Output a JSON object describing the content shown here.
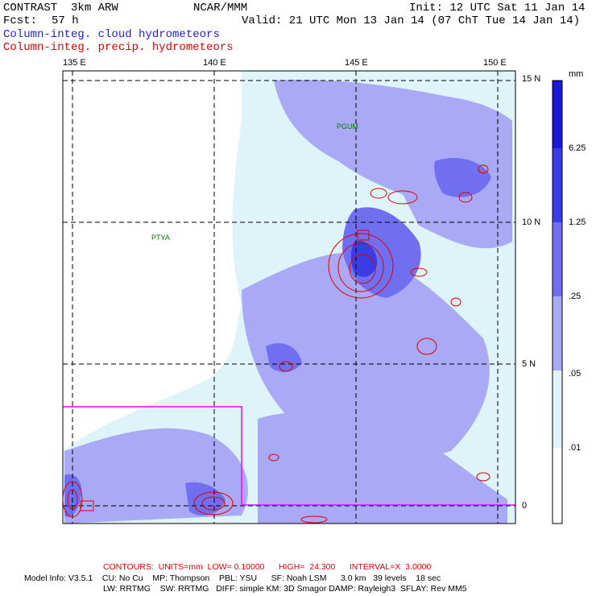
{
  "header": {
    "model": "CONTRAST  3km ARW",
    "org": "NCAR/MMM",
    "init": "Init: 12 UTC Sat 11 Jan 14",
    "fcst_label": "Fcst:",
    "fcst_value": "57 h",
    "valid": "Valid: 21 UTC Mon 13 Jan 14 (07 ChT Tue 14 Jan 14)",
    "field1": "Column-integ. cloud hydrometeors",
    "field2": "Column-integ. precip. hydrometeors"
  },
  "axes": {
    "lon_labels": [
      "135 E",
      "140 E",
      "145 E",
      "150 E"
    ],
    "lat_labels": [
      "15 N",
      "10 N",
      "5 N",
      "0"
    ]
  },
  "stations": [
    "PGUM",
    "PTYA"
  ],
  "legend": {
    "unit": "mm",
    "levels": [
      "6.25",
      "1.25",
      ".25",
      ".05",
      ".01"
    ],
    "colors": [
      "#1a1ad6",
      "#3c3ce6",
      "#6f6ff0",
      "#a9a9f6",
      "#dff4f8",
      "#ffffff"
    ]
  },
  "footer": {
    "contours": "CONTOURS:  UNITS=mm  LOW= 0.10000      HIGH=  24.300      INTERVAL=X  3.0000",
    "model_info": "Model Info: V3.5.1    CU: No Cu    MP: Thompson    PBL: YSU      SF: Noah LSM      3.0 km   39 levels    18 sec",
    "model_info2": "LW: RRTMG    SW: RRTMG   DIFF: simple KM: 3D Smagor DAMP: Rayleigh3  SFLAY: Rev MM5"
  },
  "colors": {
    "contour": "#e00000",
    "nest_box": "#ff00ff",
    "grid": "#000000"
  }
}
